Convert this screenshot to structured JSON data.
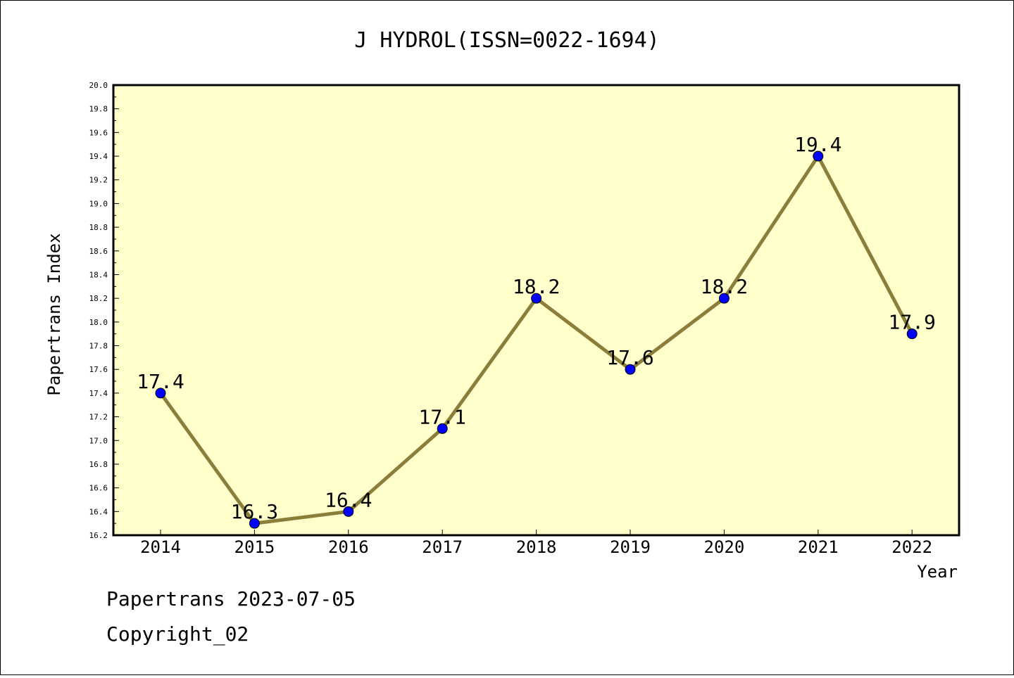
{
  "chart_data": {
    "type": "line",
    "title": "J HYDROL(ISSN=0022-1694)",
    "xlabel": "Year",
    "ylabel": "Papertrans Index",
    "categories": [
      "2014",
      "2015",
      "2016",
      "2017",
      "2018",
      "2019",
      "2020",
      "2021",
      "2022"
    ],
    "values": [
      17.4,
      16.3,
      16.4,
      17.1,
      18.2,
      17.6,
      18.2,
      19.4,
      17.9
    ],
    "data_labels": [
      "17.4",
      "16.3",
      "16.4",
      "17.1",
      "18.2",
      "17.6",
      "18.2",
      "19.4",
      "17.9"
    ],
    "ylim": [
      16.2,
      20.0
    ],
    "y_ticks": [
      "16.2",
      "16.4",
      "16.6",
      "16.8",
      "17.0",
      "17.2",
      "17.4",
      "17.6",
      "17.8",
      "18.0",
      "18.2",
      "18.4",
      "18.6",
      "18.8",
      "19.0",
      "19.2",
      "19.4",
      "19.6",
      "19.8",
      "20.0"
    ],
    "grid": false,
    "legend": "none",
    "colors": {
      "plot_background": "#ffffcc",
      "line": "#8b7d3a",
      "marker": "#0000ff"
    }
  },
  "footer": {
    "date_line": "Papertrans 2023-07-05",
    "copyright": "Copyright_02"
  }
}
